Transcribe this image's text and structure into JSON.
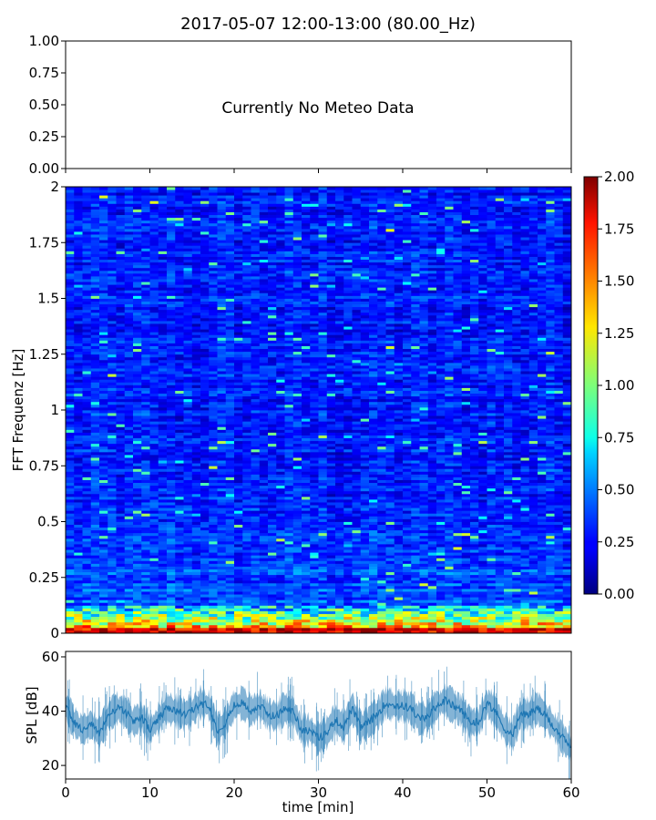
{
  "title": "2017-05-07 12:00-13:00 (80.00_Hz)",
  "chart_data": [
    {
      "type": "line",
      "panel": "meteo",
      "annotation": "Currently No Meteo Data",
      "ylim": [
        0.0,
        1.0
      ],
      "yticks": [
        "0.00",
        "0.25",
        "0.50",
        "0.75",
        "1.00"
      ],
      "xlim": [
        0,
        60
      ],
      "series": []
    },
    {
      "type": "heatmap",
      "panel": "spectrogram",
      "ylabel": "FFT Frequenz [Hz]",
      "xlim": [
        0,
        60
      ],
      "ylim": [
        0,
        2
      ],
      "yticks": [
        "0",
        "0.25",
        "0.5",
        "0.75",
        "1",
        "1.25",
        "1.5",
        "1.75",
        "2"
      ],
      "colormap": "jet",
      "colorbar": {
        "range": [
          0.0,
          2.0
        ],
        "ticks": [
          "0.00",
          "0.25",
          "0.50",
          "0.75",
          "1.00",
          "1.25",
          "1.50",
          "1.75",
          "2.00"
        ]
      },
      "description_values": {
        "background_level": 0.3,
        "low_frequency_band_hz": [
          0,
          0.12
        ],
        "low_frequency_level": 1.6
      }
    },
    {
      "type": "line",
      "panel": "spl",
      "xlabel": "time [min]",
      "ylabel": "SPL [dB]",
      "xlim": [
        0,
        60
      ],
      "ylim": [
        15,
        62
      ],
      "xticks": [
        "0",
        "10",
        "20",
        "30",
        "40",
        "50",
        "60"
      ],
      "yticks": [
        "20",
        "40",
        "60"
      ],
      "series": [
        {
          "color": "#1f77b4",
          "x": [
            0,
            1,
            2,
            3,
            4,
            5,
            6,
            7,
            8,
            9,
            10,
            11,
            12,
            13,
            14,
            15,
            16,
            17,
            18,
            19,
            20,
            21,
            22,
            23,
            24,
            25,
            26,
            27,
            28,
            29,
            30,
            31,
            32,
            33,
            34,
            35,
            36,
            37,
            38,
            39,
            40,
            41,
            42,
            43,
            44,
            45,
            46,
            47,
            48,
            49,
            50,
            51,
            52,
            53,
            54,
            55,
            56,
            57,
            58,
            59,
            60
          ],
          "values": [
            42,
            36,
            33,
            35,
            32,
            38,
            41,
            40,
            36,
            38,
            33,
            37,
            41,
            40,
            39,
            40,
            43,
            42,
            33,
            36,
            42,
            43,
            40,
            42,
            39,
            38,
            41,
            40,
            33,
            33,
            30,
            32,
            37,
            34,
            41,
            34,
            36,
            39,
            43,
            42,
            42,
            41,
            37,
            38,
            42,
            44,
            42,
            40,
            36,
            36,
            43,
            40,
            34,
            31,
            39,
            39,
            41,
            38,
            34,
            30,
            26
          ],
          "band": 5
        }
      ]
    }
  ]
}
